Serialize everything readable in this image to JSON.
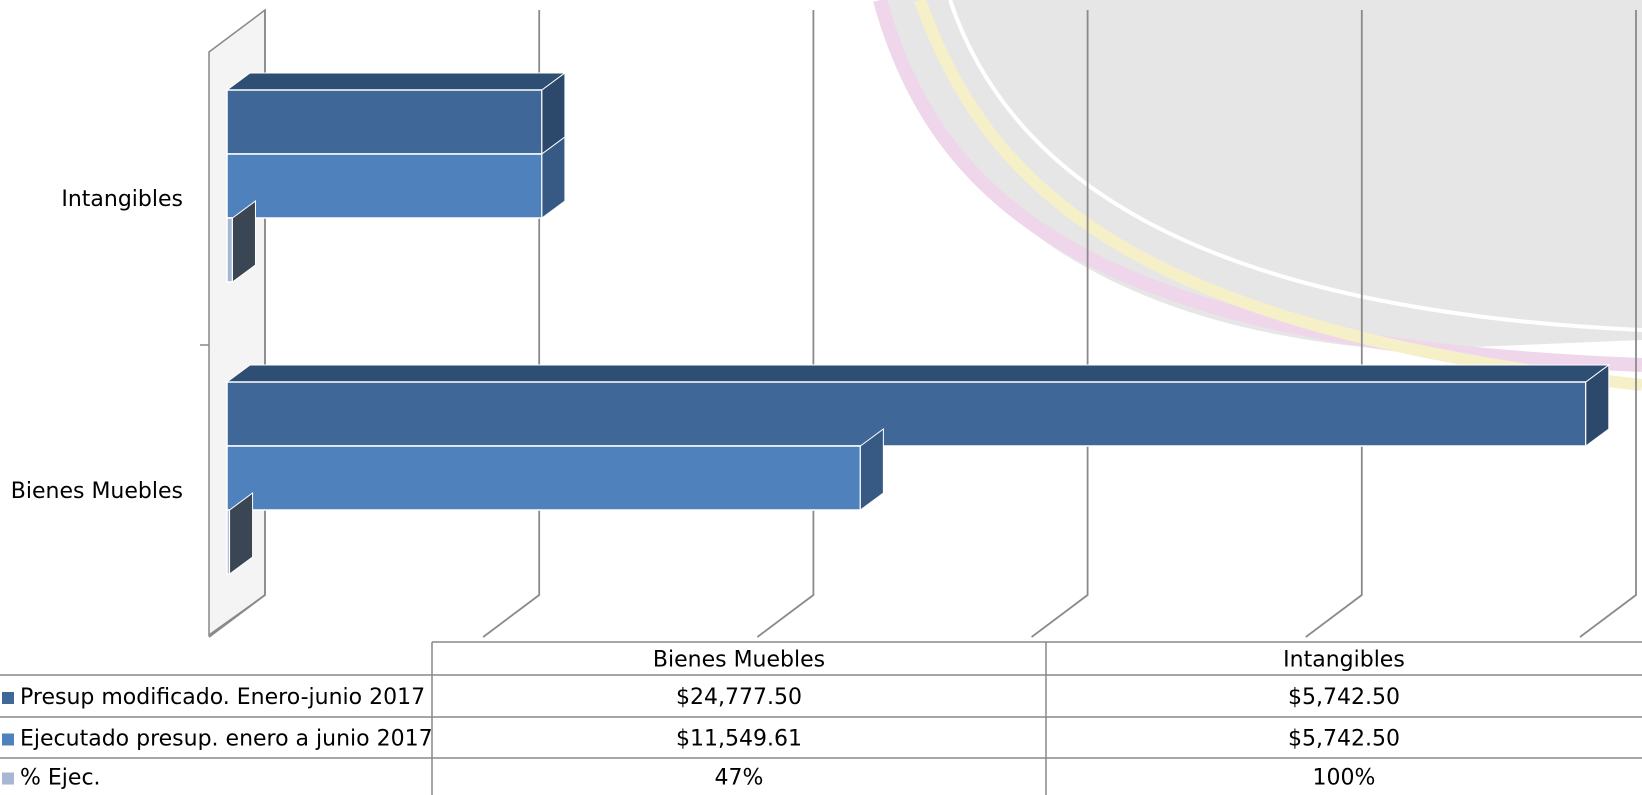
{
  "chart_data": {
    "type": "bar3d_horizontal",
    "categories": [
      "Bienes Muebles",
      "Intangibles"
    ],
    "series": [
      {
        "name": "Presup modificado. Enero-junio 2017",
        "color": "#3f6899",
        "values": [
          24777.5,
          5742.5
        ],
        "value_labels": [
          "$24,777.50",
          "$5,742.50"
        ]
      },
      {
        "name": "Ejecutado presup. enero a junio 2017",
        "color": "#4f81bd",
        "values": [
          11549.61,
          5742.5
        ],
        "value_labels": [
          "$11,549.61",
          "$5,742.50"
        ]
      },
      {
        "name": "% Ejec.",
        "color": "#a6b6d3",
        "values": [
          47,
          100
        ],
        "value_labels": [
          "47%",
          "100%"
        ]
      }
    ],
    "xlim": [
      0,
      25000
    ],
    "xticks": [
      0,
      5000,
      10000,
      15000,
      20000,
      25000
    ],
    "grid": true
  }
}
